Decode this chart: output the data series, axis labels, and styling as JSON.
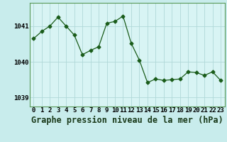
{
  "x": [
    0,
    1,
    2,
    3,
    4,
    5,
    6,
    7,
    8,
    9,
    10,
    11,
    12,
    13,
    14,
    15,
    16,
    17,
    18,
    19,
    20,
    21,
    22,
    23
  ],
  "y": [
    1040.65,
    1040.85,
    1041.0,
    1041.25,
    1041.0,
    1040.75,
    1040.2,
    1040.32,
    1040.42,
    1041.08,
    1041.13,
    1041.28,
    1040.52,
    1040.05,
    1039.42,
    1039.52,
    1039.48,
    1039.5,
    1039.52,
    1039.72,
    1039.7,
    1039.62,
    1039.72,
    1039.48
  ],
  "line_color": "#1a5c1a",
  "marker": "D",
  "marker_size": 2.5,
  "bg_color": "#c8ecec",
  "plot_bg_color": "#d8f4f4",
  "grid_color": "#b0d8d8",
  "title": "Graphe pression niveau de la mer (hPa)",
  "ylabel_ticks": [
    1039,
    1040,
    1041
  ],
  "xlim": [
    -0.5,
    23.5
  ],
  "ylim": [
    1038.75,
    1041.65
  ],
  "title_fontsize": 8.5,
  "tick_fontsize": 6.5,
  "border_color": "#5a9a5a"
}
